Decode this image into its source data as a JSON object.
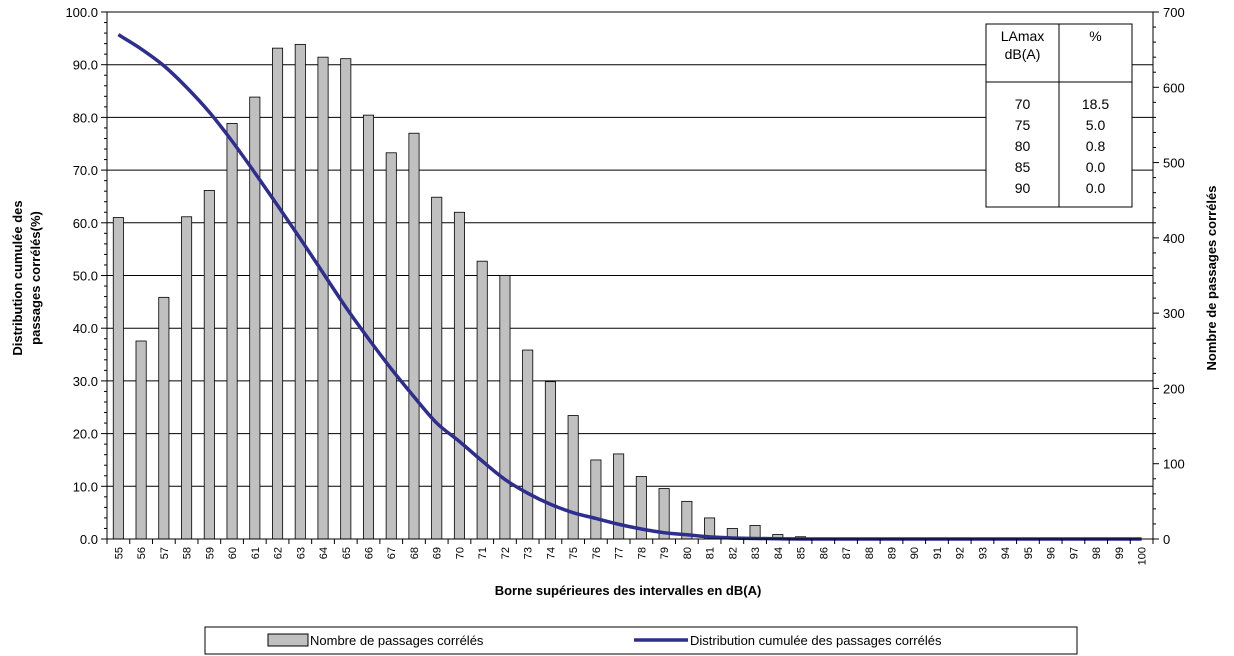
{
  "chart_data": {
    "type": "bar",
    "xlabel": "Borne supérieures des intervalles en dB(A)",
    "ylabel_left": "Distribution cumulée des passages corrélés(%)",
    "ylabel_right": "Nombre de passages corrélés",
    "ylim_left": [
      0,
      100
    ],
    "ylim_right": [
      0,
      700
    ],
    "left_ticks": [
      "0.0",
      "10.0",
      "20.0",
      "30.0",
      "40.0",
      "50.0",
      "60.0",
      "70.0",
      "80.0",
      "90.0",
      "100.0"
    ],
    "right_ticks": [
      "0",
      "100",
      "200",
      "300",
      "400",
      "500",
      "600",
      "700"
    ],
    "categories": [
      "55",
      "56",
      "57",
      "58",
      "59",
      "60",
      "61",
      "62",
      "63",
      "64",
      "65",
      "66",
      "67",
      "68",
      "69",
      "70",
      "71",
      "72",
      "73",
      "74",
      "75",
      "76",
      "77",
      "78",
      "79",
      "80",
      "81",
      "82",
      "83",
      "84",
      "85",
      "86",
      "87",
      "88",
      "89",
      "90",
      "91",
      "92",
      "93",
      "94",
      "95",
      "96",
      "97",
      "98",
      "99",
      "100"
    ],
    "series": [
      {
        "name": "Nombre de passages corrélés",
        "type": "bar",
        "axis": "right",
        "color": "#c0c0c0",
        "values": [
          427,
          263,
          321,
          428,
          463,
          552,
          587,
          652,
          657,
          640,
          638,
          563,
          513,
          539,
          454,
          434,
          369,
          350,
          251,
          209,
          164,
          105,
          113,
          83,
          67,
          50,
          28,
          14,
          18,
          6,
          3,
          1,
          1,
          1,
          0,
          0,
          0,
          0,
          0,
          0,
          1,
          0,
          0,
          0,
          0,
          0
        ]
      },
      {
        "name": "Distribution cumulée des passages corrélés",
        "type": "line",
        "axis": "left",
        "color": "#2e2e8f",
        "values": [
          95.7,
          93.0,
          89.8,
          85.7,
          81.0,
          75.5,
          69.5,
          63.3,
          57.0,
          50.5,
          44.0,
          38.0,
          32.3,
          27.0,
          22.0,
          18.5,
          14.8,
          11.3,
          8.7,
          6.6,
          5.0,
          3.9,
          2.8,
          1.9,
          1.2,
          0.8,
          0.4,
          0.2,
          0.1,
          0.05,
          0.0,
          0.0,
          0.0,
          0.0,
          0.0,
          0.0,
          0.0,
          0.0,
          0.0,
          0.0,
          0.0,
          0.0,
          0.0,
          0.0,
          0.0,
          0.0
        ]
      }
    ],
    "legend": {
      "position": "bottom",
      "bar_label": "Nombre de passages corrélés",
      "line_label": "Distribution cumulée des passages corrélés"
    },
    "inset_table": {
      "headers": [
        "LAmax\ndB(A)",
        "%"
      ],
      "rows": [
        [
          "70",
          "18.5"
        ],
        [
          "75",
          "5.0"
        ],
        [
          "80",
          "0.8"
        ],
        [
          "85",
          "0.0"
        ],
        [
          "90",
          "0.0"
        ]
      ]
    },
    "grid": true
  }
}
